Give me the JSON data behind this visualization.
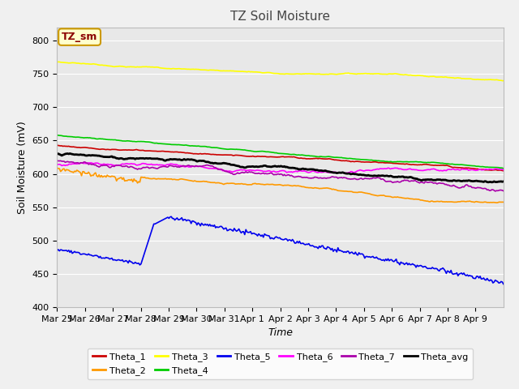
{
  "title": "TZ Soil Moisture",
  "xlabel": "Time",
  "ylabel": "Soil Moisture (mV)",
  "ylim": [
    400,
    820
  ],
  "plot_bg": "#e8e8e8",
  "fig_bg": "#f0f0f0",
  "legend_label": "TZ_sm",
  "series": {
    "Theta_1": {
      "color": "#cc0000"
    },
    "Theta_2": {
      "color": "#ff9900"
    },
    "Theta_3": {
      "color": "#ffff00"
    },
    "Theta_4": {
      "color": "#00cc00"
    },
    "Theta_5": {
      "color": "#0000ee"
    },
    "Theta_6": {
      "color": "#ff00ff"
    },
    "Theta_7": {
      "color": "#aa00aa"
    },
    "Theta_avg": {
      "color": "#000000"
    }
  },
  "xtick_labels": [
    "Mar 25",
    "Mar 26",
    "Mar 27",
    "Mar 28",
    "Mar 29",
    "Mar 30",
    "Mar 31",
    "Apr 1",
    "Apr 2",
    "Apr 3",
    "Apr 4",
    "Apr 5",
    "Apr 6",
    "Apr 7",
    "Apr 8",
    "Apr 9"
  ],
  "legend_row1": [
    "Theta_1",
    "Theta_2",
    "Theta_3",
    "Theta_4",
    "Theta_5",
    "Theta_6"
  ],
  "legend_row2": [
    "Theta_7",
    "Theta_avg"
  ]
}
